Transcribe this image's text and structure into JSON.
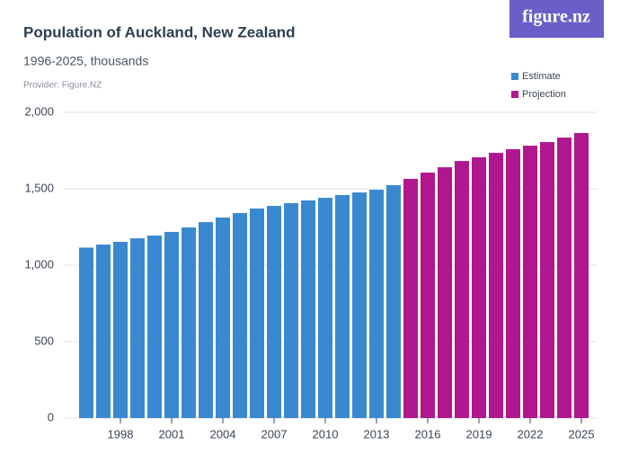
{
  "logo": "figure.nz",
  "chart_data": {
    "type": "bar",
    "title": "Population of Auckland, New Zealand",
    "subtitle": "1996-2025, thousands",
    "provider": "Provider: Figure.NZ",
    "categories": [
      null,
      null,
      "1998",
      null,
      null,
      "2001",
      null,
      null,
      "2004",
      null,
      null,
      "2007",
      null,
      null,
      "2010",
      null,
      null,
      "2013",
      null,
      null,
      "2016",
      null,
      null,
      "2019",
      null,
      null,
      "2022",
      null,
      null,
      "2025"
    ],
    "series": [
      {
        "name": "Estimate",
        "color": "#3a89d0",
        "values": [
          1115,
          1135,
          1153,
          1176,
          1194,
          1218,
          1247,
          1282,
          1312,
          1341,
          1371,
          1388,
          1406,
          1424,
          1441,
          1459,
          1476,
          1494,
          1524,
          null,
          null,
          null,
          null,
          null,
          null,
          null,
          null,
          null,
          null,
          null
        ]
      },
      {
        "name": "Projection",
        "color": "#b0178e",
        "values": [
          null,
          null,
          null,
          null,
          null,
          null,
          null,
          null,
          null,
          null,
          null,
          null,
          null,
          null,
          null,
          null,
          null,
          null,
          null,
          1565,
          1606,
          1641,
          1682,
          1706,
          1735,
          1759,
          1782,
          1806,
          1835,
          1865
        ]
      }
    ],
    "ylim": [
      0,
      2000
    ],
    "yticks": [
      0,
      500,
      {
        "value": 1000,
        "label": "1,000"
      },
      {
        "value": 1500,
        "label": "1,500"
      },
      {
        "value": 2000,
        "label": "2,000"
      }
    ],
    "grid": true,
    "legend": "top-right"
  }
}
